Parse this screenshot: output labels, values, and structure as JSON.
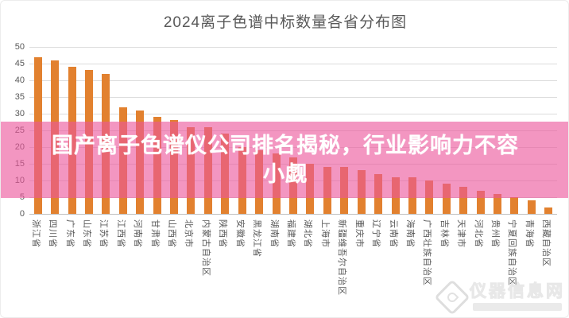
{
  "header": {
    "title": "2024离子色谱中标数量各省分布图"
  },
  "chart_data": {
    "type": "bar",
    "title": "2024离子色谱中标数量各省分布图",
    "categories": [
      "浙江省",
      "四川省",
      "广东省",
      "山东省",
      "江苏省",
      "江西省",
      "河南省",
      "甘肃省",
      "山西省",
      "北京市",
      "内蒙古自治区",
      "陕西省",
      "安徽省",
      "黑龙江省",
      "湖南省",
      "福建省",
      "湖北省",
      "上海市",
      "新疆维吾尔自治区",
      "重庆市",
      "辽宁省",
      "云南省",
      "海南省",
      "广西壮族自治区",
      "吉林省",
      "天津市",
      "河北省",
      "贵州省",
      "宁夏回族自治区",
      "青海省",
      "西藏自治区"
    ],
    "values": [
      47,
      46,
      44,
      43,
      42,
      32,
      31,
      29,
      28,
      26,
      26,
      24,
      20,
      19,
      18,
      17,
      15,
      14,
      14,
      13,
      12,
      11,
      11,
      10,
      9,
      8,
      7,
      6,
      5,
      4,
      2
    ],
    "xlabel": "",
    "ylabel": "",
    "ylim": [
      0,
      50
    ],
    "ytick_step": 5,
    "grid": true,
    "legend": false,
    "bar_color": "#e2812f",
    "axis_label_color": "#595959",
    "gridline_color": "#dcdcdc"
  },
  "overlay": {
    "line1": "国产离子色谱仪公司排名揭秘，行业影响力不容",
    "line2": "小觑",
    "band_color": "rgba(235,85,155,0.62)"
  },
  "watermark": {
    "text": "仪器信息网"
  }
}
